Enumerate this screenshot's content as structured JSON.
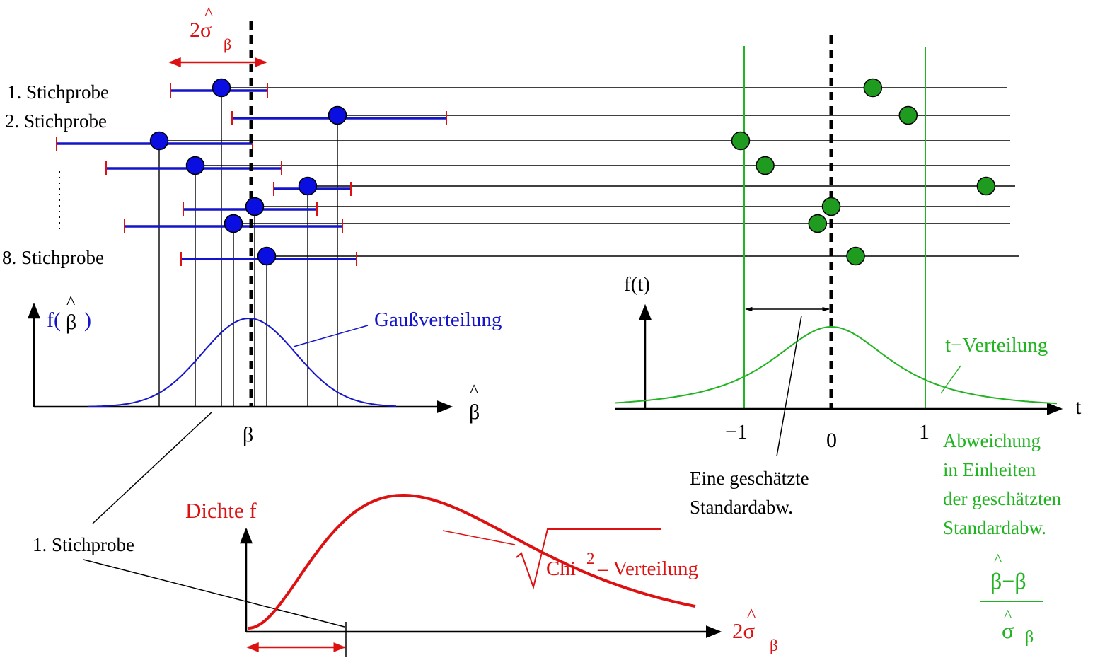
{
  "colors": {
    "black": "#000000",
    "blue": "#1414c8",
    "blue_dot": "#0b0ee0",
    "red": "#dd1111",
    "green": "#22b322",
    "green_dot": "#1f9c1f"
  },
  "labels": {
    "sample_1": "1. Stichprobe",
    "sample_2": "2. Stichprobe",
    "sample_8": "8. Stichprobe",
    "two_sigma": "2σ",
    "sub_beta": "β",
    "hat": "^",
    "f_beta_hat_open": "f(",
    "f_beta_hat_beta": "β",
    "f_beta_hat_close": ")",
    "gauss": "Gaußverteilung",
    "beta_hat_axis": "β",
    "beta_true": "β",
    "f_t": "f(t)",
    "t_axis": "t",
    "tick_minus1": "−1",
    "tick_0": "0",
    "tick_1": "1",
    "t_dist": "t−Verteilung",
    "est_sd_line1": "Eine geschätzte",
    "est_sd_line2": "Standardabw.",
    "dev_line1": "Abweichung",
    "dev_line2": "in Einheiten",
    "dev_line3": "der geschätzten",
    "dev_line4": "Standardabw.",
    "frac_num": "β−β",
    "frac_den": "σ",
    "frac_den_sub": "β",
    "density": "Dichte f",
    "chi_text": "Chi",
    "chi_sup": "2",
    "chi_rest": "– Verteilung",
    "sample_1_bottom": "1. Stichprobe",
    "two_sigma_axis": "2σ"
  },
  "samples": [
    {
      "beta_hat": 313,
      "lo": 241,
      "hi": 378,
      "t": 0.46
    },
    {
      "beta_hat": 477,
      "lo": 328,
      "hi": 631,
      "t": 0.85
    },
    {
      "beta_hat": 225,
      "lo": 80,
      "hi": 357,
      "t": -1.0
    },
    {
      "beta_hat": 276,
      "lo": 150,
      "hi": 398,
      "t": -0.73
    },
    {
      "beta_hat": 435,
      "lo": 387,
      "hi": 496,
      "t": 1.71
    },
    {
      "beta_hat": 360,
      "lo": 259,
      "hi": 448,
      "t": 0.0
    },
    {
      "beta_hat": 330,
      "lo": 176,
      "hi": 484,
      "t": -0.15
    },
    {
      "beta_hat": 377,
      "lo": 256,
      "hi": 504,
      "t": 0.27
    }
  ]
}
